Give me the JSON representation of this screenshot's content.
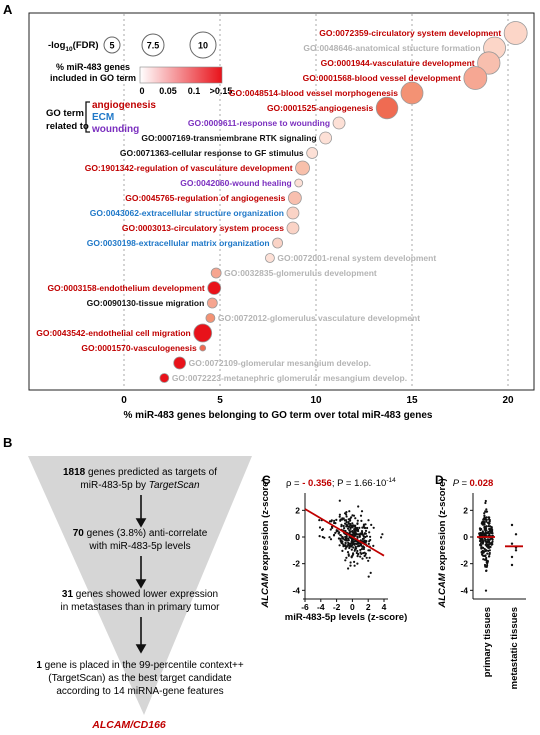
{
  "panels": {
    "a": "A",
    "b": "B",
    "c": "C",
    "d": "D"
  },
  "panel_a": {
    "chart_data": {
      "type": "scatter",
      "xlabel": "% miR-483 genes belonging to GO term over total miR-483 genes",
      "xlim": [
        -6,
        21
      ],
      "x_ticks": [
        0,
        5,
        10,
        15,
        20
      ],
      "grid": "vertical dashed",
      "size_legend": {
        "title": "-log10(FDR)",
        "title_base": "-log",
        "title_sub": "10",
        "title_rest": "(FDR)",
        "values": [
          "5",
          "7.5",
          "10"
        ]
      },
      "color_legend": {
        "title_line1": "% miR-483 genes",
        "title_line2": "included in GO term",
        "ticks": [
          "0",
          "0.05",
          "0.1",
          ">0.15"
        ],
        "low": "#ffffff",
        "high": "#e8121a"
      },
      "category_legend": {
        "title_line1": "GO term",
        "title_line2": "related to",
        "items": [
          {
            "label": "angiogenesis",
            "color": "#c00000"
          },
          {
            "label": "ECM",
            "color": "#1f78c8"
          },
          {
            "label": "wounding",
            "color": "#7b2fbf"
          }
        ]
      },
      "points": [
        {
          "label": "GO:0072359-circulatory system development",
          "x": 20.4,
          "size": 11.5,
          "color": "#fcd6c8",
          "cat": "angiogenesis",
          "side": "left"
        },
        {
          "label": "GO:0048646-anatomical structure formation",
          "x": 19.3,
          "size": 11.0,
          "color": "#fcd6c8",
          "cat": "gray",
          "side": "left"
        },
        {
          "label": "GO:0001944-vasculature development",
          "x": 19.0,
          "size": 11.2,
          "color": "#f8bfae",
          "cat": "angiogenesis",
          "side": "left"
        },
        {
          "label": "GO:0001568-blood vessel development",
          "x": 18.3,
          "size": 11.5,
          "color": "#f6a793",
          "cat": "angiogenesis",
          "side": "left"
        },
        {
          "label": "GO:0048514-blood vessel morphogenesis",
          "x": 15.0,
          "size": 11.0,
          "color": "#f39274",
          "cat": "angiogenesis",
          "side": "left"
        },
        {
          "label": "GO:0001525-angiogenesis",
          "x": 13.7,
          "size": 10.8,
          "color": "#ef6b52",
          "cat": "angiogenesis",
          "side": "left"
        },
        {
          "label": "GO:0009611-response to wounding",
          "x": 11.2,
          "size": 6.0,
          "color": "#fde0d6",
          "cat": "wounding",
          "side": "left"
        },
        {
          "label": "GO:0007169-transmembrane RTK signaling",
          "x": 10.5,
          "size": 6.0,
          "color": "#fde0d6",
          "cat": "none",
          "side": "left"
        },
        {
          "label": "GO:0071363-cellular response to GF stimulus",
          "x": 9.8,
          "size": 5.5,
          "color": "#fde0d6",
          "cat": "none",
          "side": "left"
        },
        {
          "label": "GO:1901342-regulation of vasculature development",
          "x": 9.3,
          "size": 7.0,
          "color": "#f8c0ab",
          "cat": "angiogenesis",
          "side": "left"
        },
        {
          "label": "GO:0042060-wound healing",
          "x": 9.1,
          "size": 4.0,
          "color": "#fde0d6",
          "cat": "wounding",
          "side": "left"
        },
        {
          "label": "GO:0045765-regulation of angiogenesis",
          "x": 8.9,
          "size": 6.5,
          "color": "#f8bfae",
          "cat": "angiogenesis",
          "side": "left"
        },
        {
          "label": "GO:0043062-extracellular structure organization",
          "x": 8.8,
          "size": 6.0,
          "color": "#fad3c6",
          "cat": "ECM",
          "side": "left"
        },
        {
          "label": "GO:0003013-circulatory system process",
          "x": 8.8,
          "size": 6.0,
          "color": "#fad3c6",
          "cat": "angiogenesis",
          "side": "left"
        },
        {
          "label": "GO:0030198-extracellular matrix organization",
          "x": 8.0,
          "size": 5.0,
          "color": "#fad3c6",
          "cat": "ECM",
          "side": "left"
        },
        {
          "label": "GO:0072001-renal system development",
          "x": 7.6,
          "size": 4.5,
          "color": "#fde0d6",
          "cat": "gray",
          "side": "right"
        },
        {
          "label": "GO:0032835-glomerulus development",
          "x": 4.8,
          "size": 5.0,
          "color": "#f6a590",
          "cat": "gray",
          "side": "right"
        },
        {
          "label": "GO:0003158-endothelium development",
          "x": 4.7,
          "size": 6.5,
          "color": "#e8121a",
          "cat": "angiogenesis",
          "side": "left"
        },
        {
          "label": "GO:0090130-tissue migration",
          "x": 4.6,
          "size": 5.0,
          "color": "#f6a590",
          "cat": "none",
          "side": "left"
        },
        {
          "label": "GO:0072012-glomerulus vasculature development",
          "x": 4.5,
          "size": 4.5,
          "color": "#f39274",
          "cat": "gray",
          "side": "right"
        },
        {
          "label": "GO:0043542-endothelial cell migration",
          "x": 4.1,
          "size": 9.0,
          "color": "#e8121a",
          "cat": "angiogenesis",
          "side": "left"
        },
        {
          "label": "GO:0001570-vasculogenesis",
          "x": 4.1,
          "size": 3.0,
          "color": "#ef6b52",
          "cat": "angiogenesis",
          "side": "left"
        },
        {
          "label": "GO:0072109-glomerular mesangium develop.",
          "x": 2.9,
          "size": 6.0,
          "color": "#e8121a",
          "cat": "gray",
          "side": "right"
        },
        {
          "label": "GO:0072223-metanephric glomerular mesangium develop.",
          "x": 2.1,
          "size": 4.5,
          "color": "#e8121a",
          "cat": "gray",
          "side": "right"
        }
      ]
    }
  },
  "panel_b": {
    "steps": [
      {
        "bold": "1818",
        "text_a": " genes predicted as targets of",
        "text_b": "miR-483-5p by ",
        "italic": "TargetScan"
      },
      {
        "bold": "70",
        "text_a": " genes (3.8%) anti-correlate",
        "text_b": "with miR-483-5p levels"
      },
      {
        "bold": "31",
        "text_a": " genes showed lower expression",
        "text_b": "in metastases than in primary tumor"
      },
      {
        "bold": "1",
        "text_a": " gene is placed in the 99-percentile context++",
        "text_b": "(TargetScan) as the best target candidate",
        "text_c": "according to 14 miRNA-gene features"
      }
    ],
    "result": "ALCAM/CD166"
  },
  "panel_c": {
    "stats_rho_prefix": "ρ = ",
    "stats_rho": "- 0.356",
    "stats_p_prefix": "; P = ",
    "stats_p": "1.66·10",
    "stats_p_exp": "-14",
    "chart_data": {
      "type": "scatter",
      "xlabel": "miR-483-5p levels (z-score)",
      "ylabel_italic": "ALCAM",
      "ylabel_rest": " expression (z-score)",
      "xlim": [
        -6,
        4
      ],
      "ylim": [
        -4.5,
        3
      ],
      "x_ticks": [
        -6,
        -4,
        -2,
        0,
        2,
        4
      ],
      "y_ticks": [
        -4,
        -2,
        0,
        2
      ],
      "trend": {
        "slope": -0.35,
        "intercept": 0.0,
        "color": "#c00000"
      }
    }
  },
  "panel_d": {
    "stats": "P = ",
    "p_value": "0.028",
    "chart_data": {
      "type": "scatter",
      "categories": [
        "primary tissues",
        "metastatic tissues"
      ],
      "ylabel_italic": "ALCAM",
      "ylabel_rest": " expression (z-score)",
      "ylim": [
        -4.5,
        3
      ],
      "y_ticks": [
        -4,
        -2,
        0,
        2
      ],
      "medians": [
        0.0,
        -0.7
      ],
      "median_color": "#c00000"
    }
  }
}
